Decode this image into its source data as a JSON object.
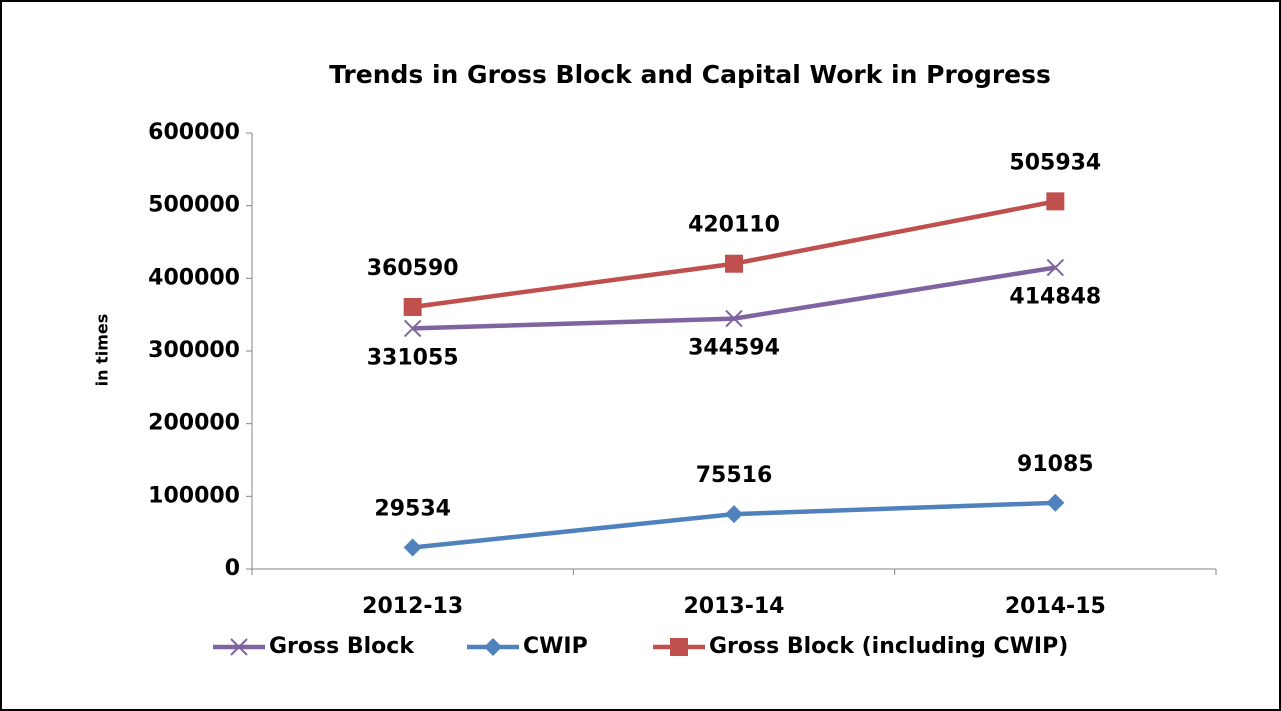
{
  "chart_data": {
    "type": "line",
    "title": "Trends in Gross Block and Capital Work in Progress",
    "y_label": "in times",
    "categories": [
      "2012-13",
      "2013-14",
      "2014-15"
    ],
    "series": [
      {
        "name": "Gross Block",
        "color": "#8064a2",
        "marker": "x",
        "label_position": "below",
        "values": [
          331055,
          344594,
          414848
        ]
      },
      {
        "name": "CWIP",
        "color": "#4f81bd",
        "marker": "diamond",
        "label_position": "above",
        "values": [
          29534,
          75516,
          91085
        ]
      },
      {
        "name": "Gross Block (including CWIP)",
        "color": "#c0504d",
        "marker": "square",
        "label_position": "above",
        "values": [
          360590,
          420110,
          505934
        ]
      }
    ],
    "ylim": [
      0,
      600000
    ],
    "yticks": [
      0,
      100000,
      200000,
      300000,
      400000,
      500000,
      600000
    ],
    "legend": "bottom"
  }
}
